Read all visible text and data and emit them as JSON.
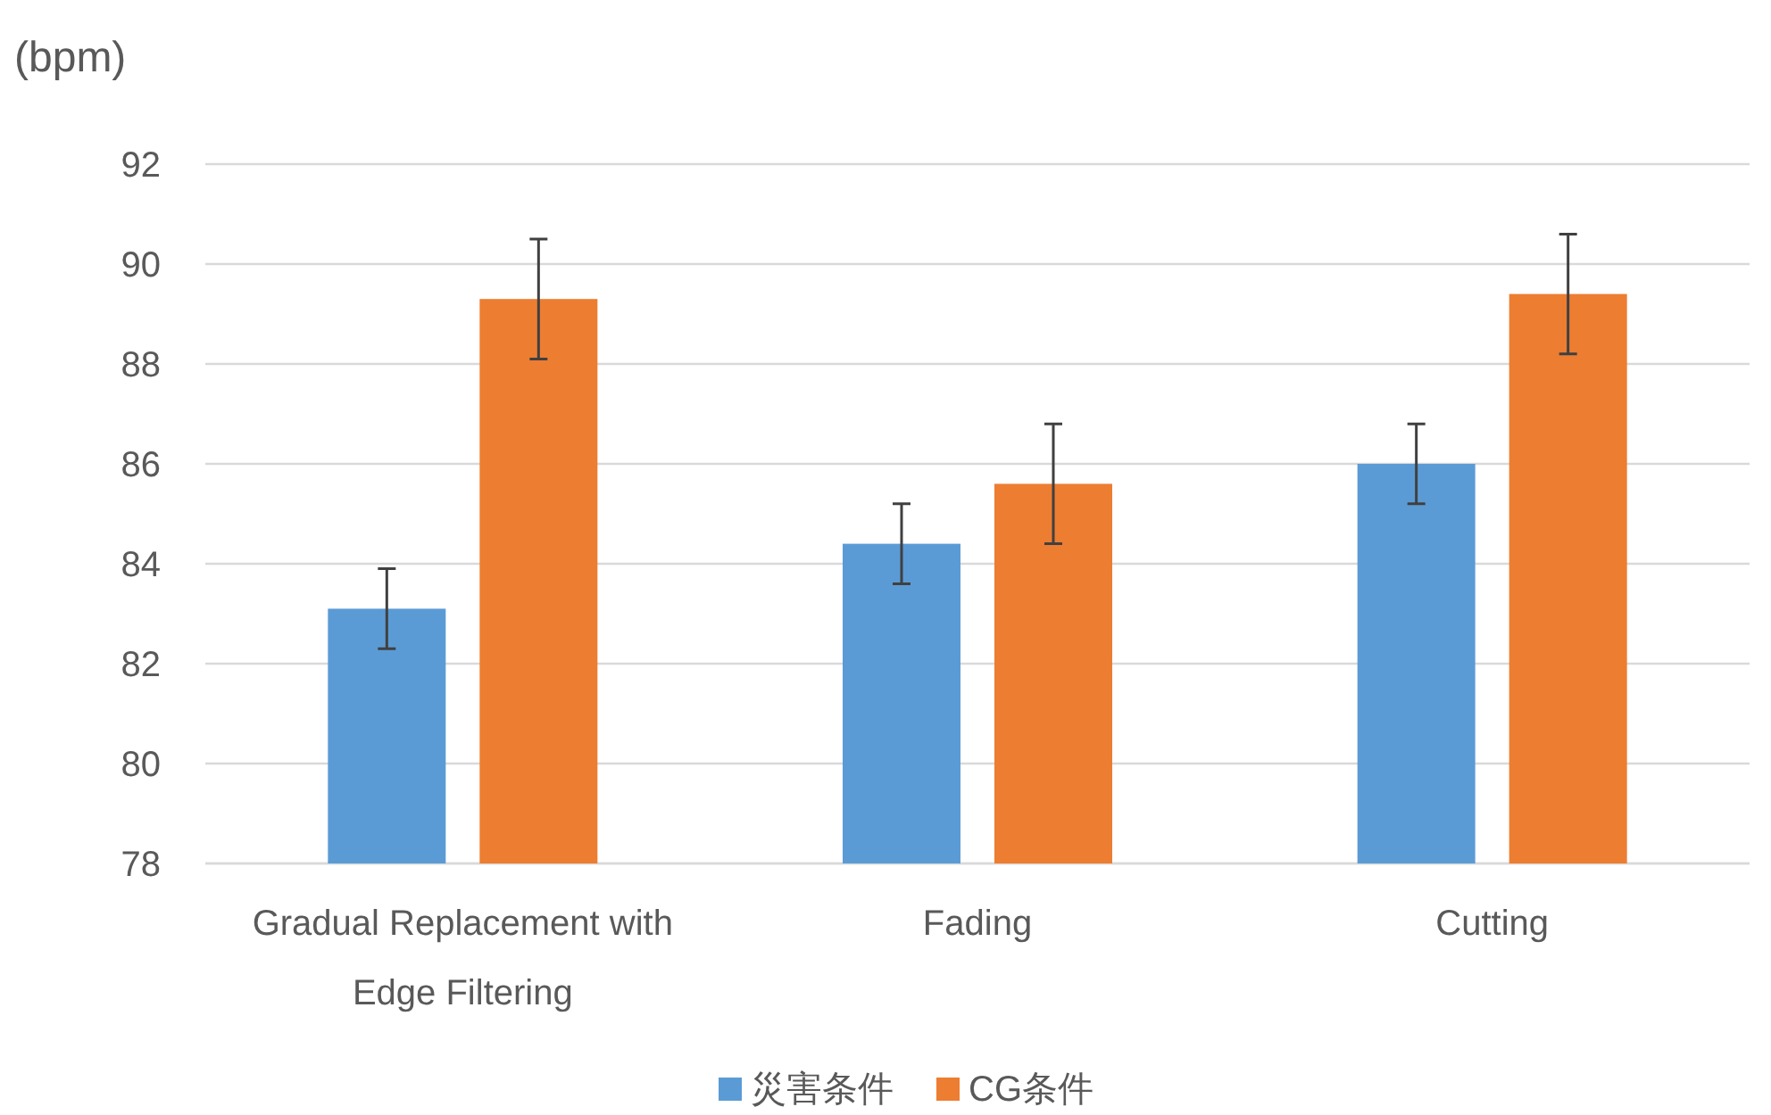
{
  "chart_data": {
    "type": "bar",
    "ylabel": "(bpm)",
    "categories": [
      "Gradual Replacement with Edge Filtering",
      "Fading",
      "Cutting"
    ],
    "series": [
      {
        "name": "災害条件",
        "color": "#5b9bd5",
        "values": [
          83.1,
          84.4,
          86.0
        ],
        "errors": [
          0.8,
          0.8,
          0.8
        ]
      },
      {
        "name": "CG条件",
        "color": "#ed7d31",
        "values": [
          89.3,
          85.6,
          89.4
        ],
        "errors": [
          1.2,
          1.2,
          1.2
        ]
      }
    ],
    "ylim": [
      78,
      92
    ],
    "yticks": [
      78,
      80,
      82,
      84,
      86,
      88,
      90,
      92
    ],
    "grid": "y",
    "legend": "bottom"
  }
}
